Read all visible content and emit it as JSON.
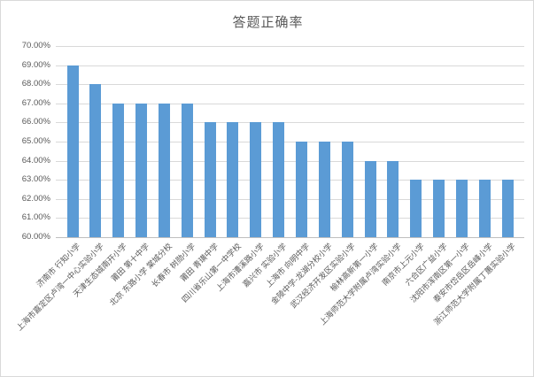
{
  "chart_data": {
    "type": "bar",
    "title": "答题正确率",
    "categories": [
      "济南市 行知小学",
      "上海市嘉定区卢湾一中心实验小学",
      "天津生态城南开小学",
      "莆田 第十中学",
      "北京 东路小学 棠城分校",
      "长春市 树勋小学",
      "莆田 青璜中学",
      "四川省乐山第一中学校",
      "上海市漕溪路小学",
      "嘉兴市 实验小学",
      "上海市 向明中学",
      "金陵中学-龙湖分校小学",
      "武汉经济开发区实验小学",
      "榆林高新第一小学",
      "上海师范大学附属卢湾实验小学",
      "南京市上元小学",
      "六合区广益小学",
      "沈阳市浑南区第一小学",
      "泰安市岱岳区岳峰小学",
      "浙江师范大学附属丁蕙实验小学"
    ],
    "values_percent": [
      69,
      68,
      67,
      67,
      67,
      67,
      66,
      66,
      66,
      66,
      65,
      65,
      65,
      64,
      64,
      63,
      63,
      63,
      63,
      63
    ],
    "ylim_percent": [
      60,
      70
    ],
    "ytick_step_percent": 1,
    "ytick_labels": [
      "70.00%",
      "69.00%",
      "68.00%",
      "67.00%",
      "66.00%",
      "65.00%",
      "64.00%",
      "63.00%",
      "62.00%",
      "61.00%",
      "60.00%"
    ],
    "xlabel": "",
    "ylabel": "",
    "legend": "none",
    "grid": true,
    "colors": {
      "bar": "#5b9bd5",
      "gridline": "#d9d9d9",
      "axis_line": "#bfbfbf",
      "tick_text": "#595959",
      "title_text": "#595959",
      "frame_border": "#d9d9d9",
      "background": "#ffffff"
    }
  }
}
